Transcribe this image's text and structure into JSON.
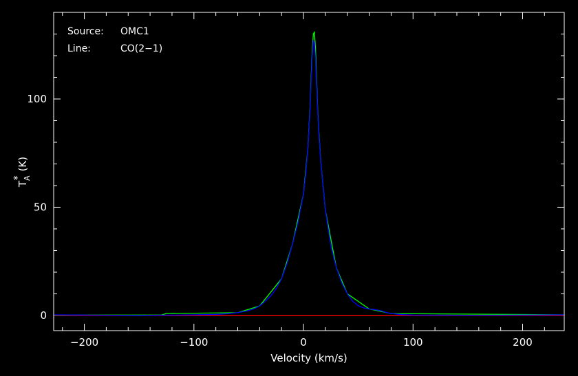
{
  "chart_data": {
    "type": "line",
    "xlabel": "Velocity (km/s)",
    "ylabel_base": "T",
    "ylabel_sub": "A",
    "ylabel_sup": "*",
    "ylabel_unit": "(K)",
    "xlim": [
      -228,
      238
    ],
    "ylim": [
      -7,
      140
    ],
    "x_ticks": [
      -200,
      -100,
      0,
      100,
      200
    ],
    "x_tick_labels": [
      "−200",
      "−100",
      "0",
      "100",
      "200"
    ],
    "y_ticks": [
      0,
      50,
      100
    ],
    "y_tick_labels": [
      "0",
      "50",
      "100"
    ],
    "x_minor_step": 20,
    "y_minor_step": 10,
    "annotations": [
      {
        "key": "Source:",
        "value": "OMC1"
      },
      {
        "key": "Line:",
        "value": "CO(2−1)"
      }
    ],
    "series": [
      {
        "color": "#0000ff",
        "x": [
          -228,
          -200,
          -150,
          -100,
          -80,
          -70,
          -60,
          -50,
          -45,
          -40,
          -35,
          -30,
          -25,
          -20,
          -15,
          -10,
          -5,
          0,
          2,
          4,
          6,
          7,
          8,
          9,
          10,
          11,
          12,
          13,
          14,
          16,
          18,
          20,
          25,
          30,
          35,
          40,
          45,
          50,
          55,
          60,
          65,
          70,
          75,
          80,
          90,
          100,
          150,
          200,
          238
        ],
        "values": [
          0.3,
          0.2,
          0.0,
          0.3,
          0.5,
          0.8,
          1.3,
          2.3,
          3.1,
          4.4,
          6.5,
          9.0,
          12.3,
          17.0,
          24.0,
          33.0,
          43.0,
          56.0,
          65.0,
          77.0,
          95.0,
          108.0,
          120.0,
          127.0,
          126.0,
          118.0,
          106.0,
          94.0,
          84.0,
          70.0,
          59.0,
          48.5,
          32.0,
          22.0,
          15.0,
          10.0,
          6.5,
          4.5,
          3.5,
          3.0,
          2.7,
          2.3,
          1.5,
          0.9,
          0.4,
          0.2,
          0.1,
          0.2,
          0.3
        ]
      },
      {
        "color": "#00ff00",
        "x": [
          -228,
          -130,
          -125,
          -60,
          -40,
          -20,
          -10,
          0,
          4,
          6,
          7,
          8,
          9,
          10,
          11,
          12,
          13,
          14,
          16,
          20,
          30,
          40,
          60,
          80,
          238
        ],
        "values": [
          0.2,
          0.2,
          0.9,
          1.3,
          4.4,
          17.0,
          33.0,
          56.0,
          77.0,
          96.0,
          110.0,
          122.0,
          130.0,
          131.0,
          123.0,
          108.0,
          95.0,
          85.0,
          70.0,
          48.5,
          22.0,
          10.0,
          3.0,
          0.9,
          0.3
        ]
      },
      {
        "color": "#ff0000",
        "x": [
          -228,
          238
        ],
        "values": [
          0.0,
          0.0
        ]
      }
    ]
  }
}
